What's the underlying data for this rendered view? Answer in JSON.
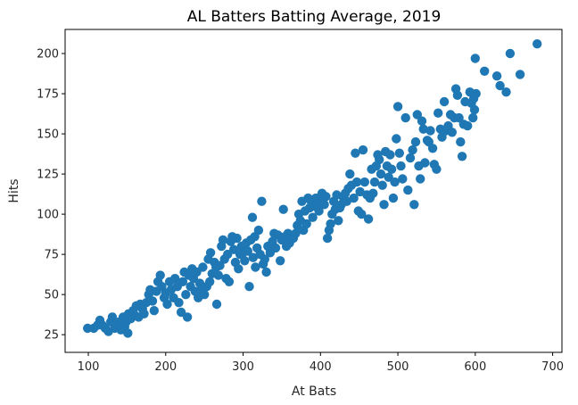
{
  "chart_data": {
    "type": "scatter",
    "title": "AL Batters Batting Average, 2019",
    "xlabel": "At Bats",
    "ylabel": "Hits",
    "xlim": [
      70,
      712
    ],
    "ylim": [
      14,
      215
    ],
    "xticks": [
      100,
      200,
      300,
      400,
      500,
      600,
      700
    ],
    "yticks": [
      25,
      50,
      75,
      100,
      125,
      150,
      175,
      200
    ],
    "grid": false,
    "marker_color": "#1f77b4",
    "points": [
      [
        99,
        29
      ],
      [
        107,
        29
      ],
      [
        112,
        31
      ],
      [
        115,
        34
      ],
      [
        118,
        31
      ],
      [
        122,
        29
      ],
      [
        126,
        27
      ],
      [
        129,
        33
      ],
      [
        131,
        36
      ],
      [
        134,
        29
      ],
      [
        137,
        30
      ],
      [
        140,
        33
      ],
      [
        142,
        28
      ],
      [
        145,
        36
      ],
      [
        147,
        30
      ],
      [
        149,
        33
      ],
      [
        151,
        26
      ],
      [
        152,
        38
      ],
      [
        155,
        35
      ],
      [
        158,
        40
      ],
      [
        160,
        37
      ],
      [
        162,
        43
      ],
      [
        165,
        36
      ],
      [
        167,
        44
      ],
      [
        170,
        41
      ],
      [
        172,
        38
      ],
      [
        175,
        45
      ],
      [
        178,
        50
      ],
      [
        180,
        53
      ],
      [
        183,
        46
      ],
      [
        185,
        40
      ],
      [
        188,
        52
      ],
      [
        190,
        58
      ],
      [
        193,
        62
      ],
      [
        195,
        55
      ],
      [
        198,
        48
      ],
      [
        200,
        51
      ],
      [
        202,
        44
      ],
      [
        205,
        58
      ],
      [
        207,
        53
      ],
      [
        210,
        48
      ],
      [
        212,
        60
      ],
      [
        215,
        55
      ],
      [
        217,
        45
      ],
      [
        220,
        39
      ],
      [
        222,
        58
      ],
      [
        224,
        64
      ],
      [
        226,
        50
      ],
      [
        228,
        36
      ],
      [
        230,
        62
      ],
      [
        232,
        55
      ],
      [
        234,
        66
      ],
      [
        236,
        60
      ],
      [
        238,
        52
      ],
      [
        240,
        64
      ],
      [
        242,
        48
      ],
      [
        244,
        57
      ],
      [
        246,
        53
      ],
      [
        248,
        67
      ],
      [
        250,
        50
      ],
      [
        253,
        55
      ],
      [
        255,
        72
      ],
      [
        257,
        58
      ],
      [
        258,
        76
      ],
      [
        260,
        63
      ],
      [
        263,
        70
      ],
      [
        265,
        67
      ],
      [
        266,
        44
      ],
      [
        268,
        62
      ],
      [
        270,
        68
      ],
      [
        272,
        80
      ],
      [
        274,
        84
      ],
      [
        276,
        72
      ],
      [
        278,
        60
      ],
      [
        280,
        75
      ],
      [
        282,
        58
      ],
      [
        284,
        83
      ],
      [
        286,
        86
      ],
      [
        288,
        78
      ],
      [
        290,
        70
      ],
      [
        292,
        85
      ],
      [
        294,
        66
      ],
      [
        296,
        75
      ],
      [
        298,
        80
      ],
      [
        300,
        76
      ],
      [
        302,
        71
      ],
      [
        304,
        82
      ],
      [
        306,
        77
      ],
      [
        308,
        55
      ],
      [
        310,
        84
      ],
      [
        312,
        98
      ],
      [
        313,
        73
      ],
      [
        315,
        86
      ],
      [
        316,
        67
      ],
      [
        318,
        79
      ],
      [
        320,
        90
      ],
      [
        322,
        75
      ],
      [
        324,
        108
      ],
      [
        326,
        69
      ],
      [
        328,
        72
      ],
      [
        330,
        64
      ],
      [
        332,
        80
      ],
      [
        335,
        76
      ],
      [
        338,
        83
      ],
      [
        340,
        88
      ],
      [
        342,
        79
      ],
      [
        345,
        87
      ],
      [
        348,
        71
      ],
      [
        350,
        84
      ],
      [
        352,
        103
      ],
      [
        354,
        86
      ],
      [
        356,
        80
      ],
      [
        358,
        88
      ],
      [
        360,
        82
      ],
      [
        362,
        86
      ],
      [
        365,
        85
      ],
      [
        368,
        88
      ],
      [
        370,
        93
      ],
      [
        372,
        100
      ],
      [
        374,
        96
      ],
      [
        376,
        108
      ],
      [
        378,
        90
      ],
      [
        380,
        102
      ],
      [
        382,
        94
      ],
      [
        384,
        110
      ],
      [
        386,
        104
      ],
      [
        388,
        108
      ],
      [
        390,
        98
      ],
      [
        392,
        105
      ],
      [
        394,
        110
      ],
      [
        396,
        107
      ],
      [
        398,
        102
      ],
      [
        400,
        108
      ],
      [
        402,
        113
      ],
      [
        405,
        106
      ],
      [
        407,
        111
      ],
      [
        409,
        85
      ],
      [
        411,
        90
      ],
      [
        413,
        94
      ],
      [
        415,
        100
      ],
      [
        417,
        108
      ],
      [
        419,
        103
      ],
      [
        421,
        112
      ],
      [
        423,
        96
      ],
      [
        425,
        104
      ],
      [
        427,
        106
      ],
      [
        430,
        110
      ],
      [
        432,
        113
      ],
      [
        434,
        108
      ],
      [
        436,
        116
      ],
      [
        438,
        125
      ],
      [
        440,
        118
      ],
      [
        443,
        110
      ],
      [
        445,
        138
      ],
      [
        447,
        120
      ],
      [
        449,
        102
      ],
      [
        451,
        114
      ],
      [
        453,
        100
      ],
      [
        455,
        140
      ],
      [
        457,
        120
      ],
      [
        460,
        112
      ],
      [
        462,
        97
      ],
      [
        464,
        110
      ],
      [
        466,
        128
      ],
      [
        468,
        113
      ],
      [
        470,
        120
      ],
      [
        472,
        130
      ],
      [
        474,
        137
      ],
      [
        476,
        134
      ],
      [
        478,
        125
      ],
      [
        480,
        118
      ],
      [
        482,
        106
      ],
      [
        484,
        139
      ],
      [
        486,
        130
      ],
      [
        488,
        123
      ],
      [
        490,
        137
      ],
      [
        492,
        128
      ],
      [
        494,
        110
      ],
      [
        496,
        120
      ],
      [
        498,
        147
      ],
      [
        500,
        167
      ],
      [
        502,
        138
      ],
      [
        504,
        130
      ],
      [
        506,
        122
      ],
      [
        510,
        160
      ],
      [
        513,
        115
      ],
      [
        516,
        135
      ],
      [
        519,
        140
      ],
      [
        521,
        106
      ],
      [
        523,
        145
      ],
      [
        525,
        162
      ],
      [
        527,
        130
      ],
      [
        529,
        122
      ],
      [
        531,
        158
      ],
      [
        533,
        153
      ],
      [
        535,
        132
      ],
      [
        538,
        146
      ],
      [
        540,
        145
      ],
      [
        542,
        152
      ],
      [
        545,
        141
      ],
      [
        547,
        131
      ],
      [
        550,
        128
      ],
      [
        552,
        163
      ],
      [
        555,
        153
      ],
      [
        557,
        148
      ],
      [
        560,
        170
      ],
      [
        562,
        152
      ],
      [
        565,
        155
      ],
      [
        568,
        162
      ],
      [
        570,
        151
      ],
      [
        573,
        160
      ],
      [
        575,
        178
      ],
      [
        577,
        174
      ],
      [
        579,
        160
      ],
      [
        581,
        145
      ],
      [
        583,
        136
      ],
      [
        585,
        156
      ],
      [
        587,
        170
      ],
      [
        590,
        155
      ],
      [
        593,
        176
      ],
      [
        595,
        169
      ],
      [
        597,
        160
      ],
      [
        598,
        172
      ],
      [
        599,
        165
      ],
      [
        600,
        197
      ],
      [
        601,
        175
      ],
      [
        612,
        189
      ],
      [
        628,
        186
      ],
      [
        632,
        180
      ],
      [
        640,
        176
      ],
      [
        645,
        200
      ],
      [
        658,
        187
      ],
      [
        680,
        206
      ]
    ]
  }
}
